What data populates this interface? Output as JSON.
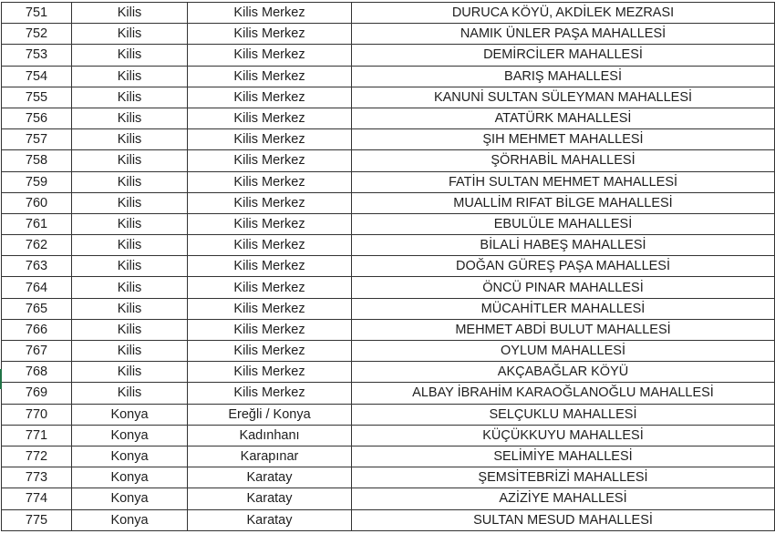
{
  "rows": [
    [
      "751",
      "Kilis",
      "Kilis Merkez",
      "DURUCA KÖYÜ, AKDİLEK MEZRASI"
    ],
    [
      "752",
      "Kilis",
      "Kilis Merkez",
      "NAMIK ÜNLER PAŞA MAHALLESİ"
    ],
    [
      "753",
      "Kilis",
      "Kilis Merkez",
      "DEMİRCİLER MAHALLESİ"
    ],
    [
      "754",
      "Kilis",
      "Kilis Merkez",
      "BARIŞ MAHALLESİ"
    ],
    [
      "755",
      "Kilis",
      "Kilis Merkez",
      "KANUNİ SULTAN SÜLEYMAN MAHALLESİ"
    ],
    [
      "756",
      "Kilis",
      "Kilis Merkez",
      "ATATÜRK MAHALLESİ"
    ],
    [
      "757",
      "Kilis",
      "Kilis Merkez",
      "ŞIH MEHMET MAHALLESİ"
    ],
    [
      "758",
      "Kilis",
      "Kilis Merkez",
      "ŞÖRHABİL MAHALLESİ"
    ],
    [
      "759",
      "Kilis",
      "Kilis Merkez",
      "FATİH SULTAN MEHMET MAHALLESİ"
    ],
    [
      "760",
      "Kilis",
      "Kilis Merkez",
      "MUALLİM RIFAT BİLGE MAHALLESİ"
    ],
    [
      "761",
      "Kilis",
      "Kilis Merkez",
      "EBULÜLE MAHALLESİ"
    ],
    [
      "762",
      "Kilis",
      "Kilis Merkez",
      "BİLALİ HABEŞ MAHALLESİ"
    ],
    [
      "763",
      "Kilis",
      "Kilis Merkez",
      "DOĞAN GÜREŞ PAŞA MAHALLESİ"
    ],
    [
      "764",
      "Kilis",
      "Kilis Merkez",
      "ÖNCÜ PINAR MAHALLESİ"
    ],
    [
      "765",
      "Kilis",
      "Kilis Merkez",
      "MÜCAHİTLER MAHALLESİ"
    ],
    [
      "766",
      "Kilis",
      "Kilis Merkez",
      "MEHMET ABDİ BULUT MAHALLESİ"
    ],
    [
      "767",
      "Kilis",
      "Kilis Merkez",
      "OYLUM MAHALLESİ"
    ],
    [
      "768",
      "Kilis",
      "Kilis Merkez",
      "AKÇABAĞLAR KÖYÜ"
    ],
    [
      "769",
      "Kilis",
      "Kilis Merkez",
      "ALBAY İBRAHİM KARAOĞLANOĞLU MAHALLESİ"
    ],
    [
      "770",
      "Konya",
      "Ereğli / Konya",
      "SELÇUKLU MAHALLESİ"
    ],
    [
      "771",
      "Konya",
      "Kadınhanı",
      "KÜÇÜKKUYU MAHALLESİ"
    ],
    [
      "772",
      "Konya",
      "Karapınar",
      "SELİMİYE MAHALLESİ"
    ],
    [
      "773",
      "Konya",
      "Karatay",
      "ŞEMSİTEBRİZİ MAHALLESİ"
    ],
    [
      "774",
      "Konya",
      "Karatay",
      "AZİZİYE MAHALLESİ"
    ],
    [
      "775",
      "Konya",
      "Karatay",
      "SULTAN MESUD MAHALLESİ"
    ]
  ],
  "selection_color": "#217346"
}
